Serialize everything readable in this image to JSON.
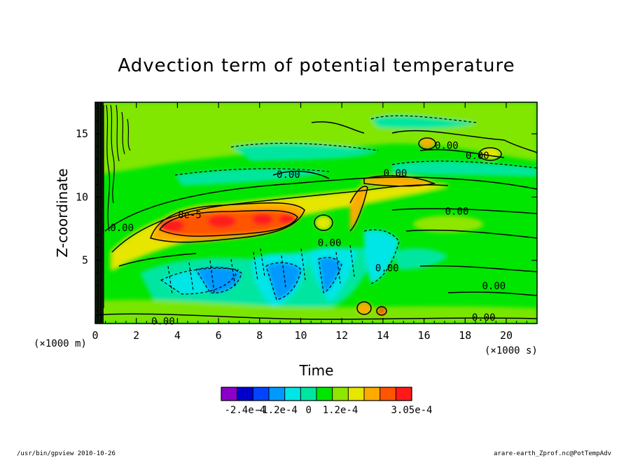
{
  "chart_data": {
    "type": "heatmap",
    "title": "Advection term of potential temperature",
    "xlabel": "Time",
    "ylabel": "Z-coordinate",
    "x_unit": "(×1000 s)",
    "y_unit": "(×1000 m)",
    "xlim": [
      0,
      21.5
    ],
    "ylim": [
      0,
      17.5
    ],
    "x_ticks": [
      0,
      2,
      4,
      6,
      8,
      10,
      12,
      14,
      16,
      18,
      20
    ],
    "y_ticks": [
      5,
      10,
      15
    ],
    "colorbar": {
      "levels": [
        -0.0003,
        -0.00024,
        -0.00018,
        -0.00012,
        -6e-05,
        0,
        6e-05,
        0.00012,
        0.00018,
        0.00024,
        0.0003,
        0.000305
      ],
      "colors": [
        "#8a00c8",
        "#0000cc",
        "#0044ff",
        "#0099ff",
        "#00e6e6",
        "#00e6a0",
        "#00e600",
        "#8fe600",
        "#e6e600",
        "#ffaa00",
        "#ff5500",
        "#ff1a1a"
      ],
      "tick_labels": [
        "-2.4e-4",
        "-1.2e-4",
        "0",
        "1.2e-4",
        "3.05e-4"
      ]
    },
    "contour_labels": [
      {
        "text": "0.00",
        "x": 14.2,
        "y": 4.4
      },
      {
        "text": "0.00",
        "x": 18.6,
        "y": 13.3
      },
      {
        "text": "0.00",
        "x": 17.1,
        "y": 14.1
      },
      {
        "text": "0.00",
        "x": 9.4,
        "y": 11.8
      },
      {
        "text": "0.00",
        "x": 14.6,
        "y": 11.9
      },
      {
        "text": "0.00",
        "x": 17.6,
        "y": 8.9
      },
      {
        "text": "0.00",
        "x": 19.4,
        "y": 3.0
      },
      {
        "text": "0.00",
        "x": 18.9,
        "y": 0.5
      },
      {
        "text": "0.00",
        "x": 1.3,
        "y": 7.6
      },
      {
        "text": "0.00",
        "x": 3.3,
        "y": 0.2
      },
      {
        "text": "8e-5",
        "x": 4.6,
        "y": 8.6
      },
      {
        "text": "0.00",
        "x": 11.4,
        "y": 6.4
      }
    ]
  },
  "footer": {
    "left": "/usr/bin/gpview  2010-10-26",
    "right": "arare-earth_Zprof.nc@PotTempAdv"
  }
}
